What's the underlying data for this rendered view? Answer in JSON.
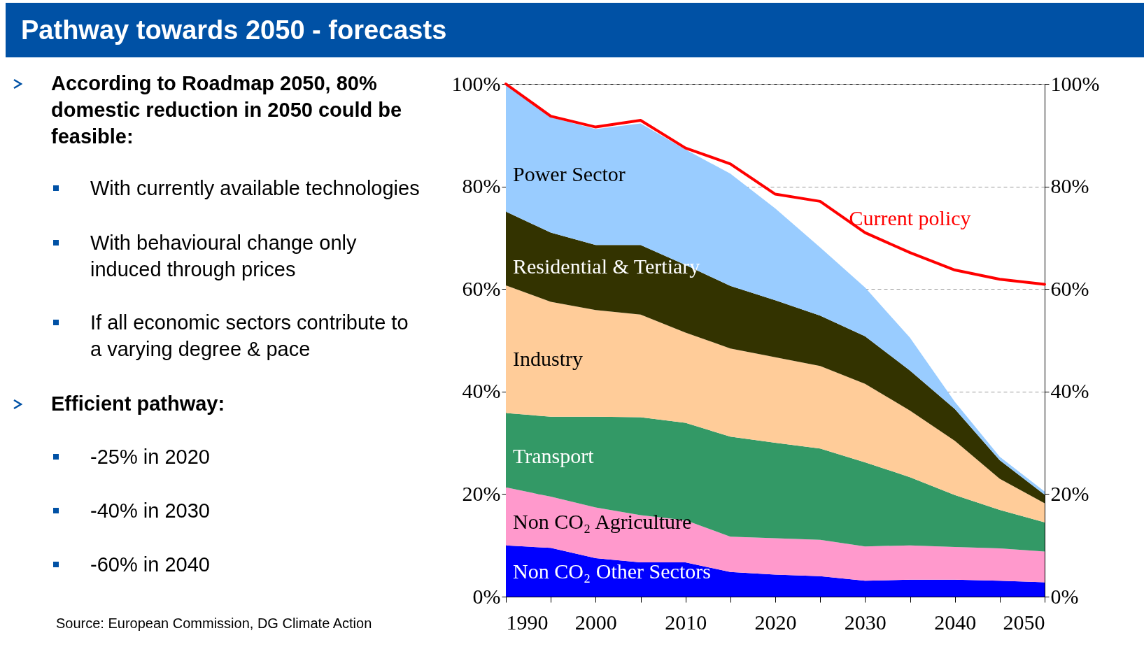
{
  "chart_data": {
    "type": "area",
    "stacked": true,
    "title": "Pathway towards 2050 - forecasts",
    "annotations": [
      "According to Roadmap 2050, 80% domestic reduction in 2050 could be feasible:",
      "With currently available technologies",
      "With behavioural change only induced through prices",
      "If all economic sectors contribute to a varying degree & pace",
      "Efficient pathway:",
      "-25% in 2020",
      "-40% in 2030",
      "-60% in 2040",
      "Source: European Commission, DG Climate Action"
    ],
    "x": [
      1990,
      1995,
      2000,
      2005,
      2010,
      2015,
      2020,
      2025,
      2030,
      2035,
      2040,
      2045,
      2050
    ],
    "xlim": [
      1990,
      2050
    ],
    "xticks": [
      1990,
      {
        "value": 1995,
        "label": null
      },
      2000,
      {
        "value": 2005,
        "label": null
      },
      2010,
      {
        "value": 2015,
        "label": null
      },
      2020,
      {
        "value": 2025,
        "label": null
      },
      2030,
      {
        "value": 2035,
        "label": null
      },
      2040,
      {
        "value": 2045,
        "label": null
      },
      2050
    ],
    "ylim": [
      0,
      100
    ],
    "yticks": [
      {
        "value": 0,
        "label": "0%"
      },
      {
        "value": 20,
        "label": "20%"
      },
      {
        "value": 40,
        "label": "40%"
      },
      {
        "value": 60,
        "label": "60%"
      },
      {
        "value": 80,
        "label": "80%"
      },
      {
        "value": 100,
        "label": "100%"
      }
    ],
    "y2lim": [
      0,
      100
    ],
    "y2ticks": [
      {
        "value": 0,
        "label": "0%"
      },
      {
        "value": 20,
        "label": "20%"
      },
      {
        "value": 40,
        "label": "40%"
      },
      {
        "value": 60,
        "label": "60%"
      },
      {
        "value": 80,
        "label": "80%"
      },
      {
        "value": 100,
        "label": "100%"
      }
    ],
    "grid": "y",
    "legend": false,
    "series": [
      {
        "name": "Non CO₂ Other Sectors",
        "color": "#0000ff",
        "values": [
          10,
          9.5,
          7.5,
          6.7,
          6.7,
          4.8,
          4.3,
          4.0,
          3.1,
          3.3,
          3.3,
          3.1,
          2.8
        ]
      },
      {
        "name": "Non CO₂ Agriculture",
        "color": "#ff99cc",
        "values": [
          11.3,
          10,
          9.9,
          9.2,
          8.2,
          6.9,
          7.1,
          7.1,
          6.7,
          6.7,
          6.4,
          6.3,
          6.0
        ]
      },
      {
        "name": "Transport",
        "color": "#339966",
        "values": [
          14.5,
          15.6,
          17.7,
          19.1,
          19.0,
          19.5,
          18.6,
          17.8,
          16.4,
          13.3,
          10.1,
          7.5,
          5.7
        ]
      },
      {
        "name": "Industry",
        "color": "#ffcc99",
        "values": [
          24.9,
          22.4,
          20.8,
          20.0,
          17.6,
          17.2,
          16.7,
          16.1,
          15.3,
          13.0,
          10.6,
          6.1,
          3.7
        ]
      },
      {
        "name": "Residential & Tertiary",
        "color": "#333300",
        "values": [
          14.4,
          13.5,
          12.7,
          13.6,
          13.2,
          12.2,
          11.1,
          9.8,
          9.3,
          7.8,
          6.2,
          3.6,
          1.7
        ]
      },
      {
        "name": "Power Sector",
        "color": "#99ccff",
        "values": [
          24.9,
          22.5,
          22.6,
          23.7,
          22.5,
          21.9,
          17.9,
          13.3,
          9.5,
          6.4,
          1.4,
          0.7,
          0.6
        ]
      },
      {
        "name": "Current policy",
        "type": "line",
        "color": "#ff0000",
        "values": [
          100,
          93.7,
          91.6,
          92.9,
          87.5,
          84.4,
          78.5,
          77.1,
          71.0,
          67.1,
          63.7,
          61.9,
          60.9
        ]
      }
    ]
  }
}
